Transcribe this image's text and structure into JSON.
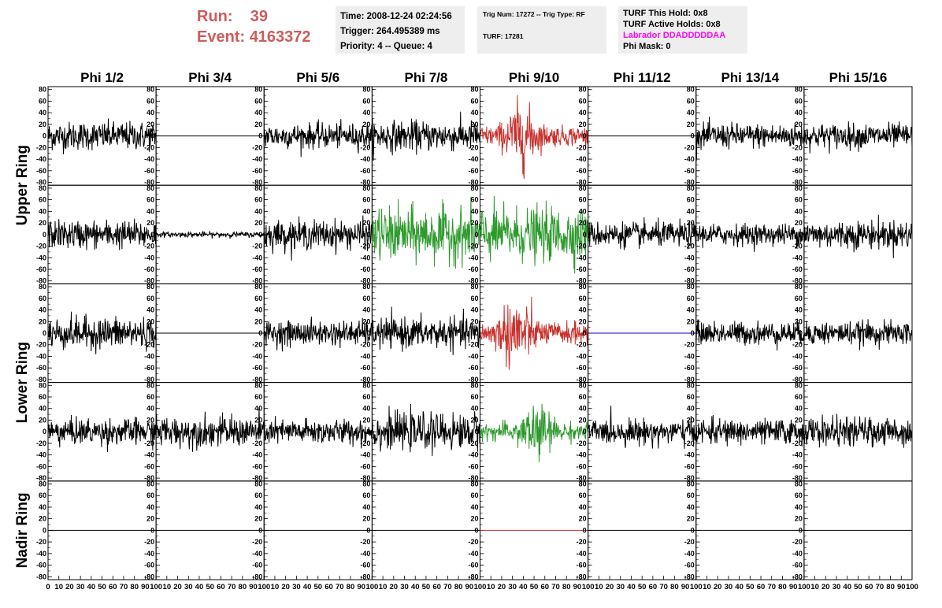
{
  "header": {
    "run_label": "Run:",
    "run_value": "39",
    "event_label": "Event:",
    "event_value": "4163372",
    "time": "Time: 2008-12-24 02:24:56",
    "trigger": "Trigger: 264.495389 ms",
    "priority": "Priority: 4 -- Queue: 4",
    "trig_num": "Trig Num: 17272 -- Trig Type: RF",
    "turf": "TURF: 17281",
    "turf_this_hold": "TURF This Hold: 0x8",
    "turf_active_holds": "TURF Active Holds: 0x8",
    "labrador": "Labrador DDADDDDDAA",
    "phi_mask": "Phi Mask: 0"
  },
  "colors": {
    "header_red": "#cd5c5c",
    "magenta": "#ff00ff",
    "trace_black": "#000000",
    "trace_red": "#c8302c",
    "trace_green": "#2e9a2e",
    "trace_blue": "#0000cc",
    "info_bg": "#eeeeee"
  },
  "chart_data": {
    "type": "line",
    "columns": [
      "Phi 1/2",
      "Phi 3/4",
      "Phi 5/6",
      "Phi 7/8",
      "Phi 9/10",
      "Phi 11/12",
      "Phi 13/14",
      "Phi 15/16"
    ],
    "rings": [
      "Upper Ring",
      "Lower Ring",
      "Nadir Ring"
    ],
    "xlim": [
      0,
      100
    ],
    "ylim": [
      -85,
      85
    ],
    "x_ticks": [
      "0",
      "10",
      "20",
      "30",
      "40",
      "50",
      "60",
      "70",
      "80",
      "90",
      "100"
    ],
    "y_ticks": [
      "80",
      "60",
      "40",
      "20",
      "0",
      "-20",
      "-40",
      "-60",
      "-80"
    ],
    "panel_rows": [
      {
        "ring": "Upper Ring",
        "channels": [
          {
            "color": "black",
            "amp": 16,
            "shape": "noise"
          },
          {
            "color": "black",
            "amp": 0,
            "shape": "flat"
          },
          {
            "color": "black",
            "amp": 14,
            "shape": "noise"
          },
          {
            "color": "black",
            "amp": 17,
            "shape": "noise"
          },
          {
            "color": "red",
            "amp": 40,
            "shape": "pulse",
            "peak_x": 38
          },
          {
            "color": "black",
            "amp": 0,
            "shape": "flat"
          },
          {
            "color": "black",
            "amp": 14,
            "shape": "noise"
          },
          {
            "color": "black",
            "amp": 14,
            "shape": "noise"
          }
        ]
      },
      {
        "ring": "Upper Ring",
        "channels": [
          {
            "color": "black",
            "amp": 16,
            "shape": "noise"
          },
          {
            "color": "black",
            "amp": 3,
            "shape": "noise"
          },
          {
            "color": "black",
            "amp": 16,
            "shape": "noise"
          },
          {
            "color": "green",
            "amp": 32,
            "shape": "burst"
          },
          {
            "color": "green",
            "amp": 32,
            "shape": "burst"
          },
          {
            "color": "black",
            "amp": 14,
            "shape": "noise"
          },
          {
            "color": "black",
            "amp": 12,
            "shape": "noise"
          },
          {
            "color": "black",
            "amp": 16,
            "shape": "noise"
          }
        ]
      },
      {
        "ring": "Lower Ring",
        "channels": [
          {
            "color": "black",
            "amp": 18,
            "shape": "noise"
          },
          {
            "color": "black",
            "amp": 0,
            "shape": "flat"
          },
          {
            "color": "black",
            "amp": 14,
            "shape": "noise"
          },
          {
            "color": "black",
            "amp": 17,
            "shape": "noise"
          },
          {
            "color": "red",
            "amp": 45,
            "shape": "pulse",
            "peak_x": 33
          },
          {
            "color": "blue",
            "amp": 0,
            "shape": "flat"
          },
          {
            "color": "black",
            "amp": 13,
            "shape": "noise"
          },
          {
            "color": "black",
            "amp": 13,
            "shape": "noise"
          }
        ]
      },
      {
        "ring": "Lower Ring",
        "channels": [
          {
            "color": "black",
            "amp": 15,
            "shape": "noise"
          },
          {
            "color": "black",
            "amp": 17,
            "shape": "noise"
          },
          {
            "color": "black",
            "amp": 14,
            "shape": "noise"
          },
          {
            "color": "black",
            "amp": 20,
            "shape": "noise"
          },
          {
            "color": "green",
            "amp": 35,
            "shape": "pulse",
            "peak_x": 52
          },
          {
            "color": "black",
            "amp": 14,
            "shape": "noise"
          },
          {
            "color": "black",
            "amp": 14,
            "shape": "noise"
          },
          {
            "color": "black",
            "amp": 16,
            "shape": "noise"
          }
        ]
      },
      {
        "ring": "Nadir Ring",
        "channels": [
          {
            "color": "black",
            "amp": 0,
            "shape": "flat"
          },
          {
            "color": "black",
            "amp": 0,
            "shape": "flat"
          },
          {
            "color": "black",
            "amp": 0,
            "shape": "flat"
          },
          {
            "color": "black",
            "amp": 0,
            "shape": "flat"
          },
          {
            "color": "red",
            "amp": 0,
            "shape": "flat"
          },
          {
            "color": "black",
            "amp": 0,
            "shape": "flat"
          },
          {
            "color": "black",
            "amp": 0,
            "shape": "flat"
          },
          {
            "color": "black",
            "amp": 0,
            "shape": "flat"
          }
        ]
      }
    ]
  }
}
